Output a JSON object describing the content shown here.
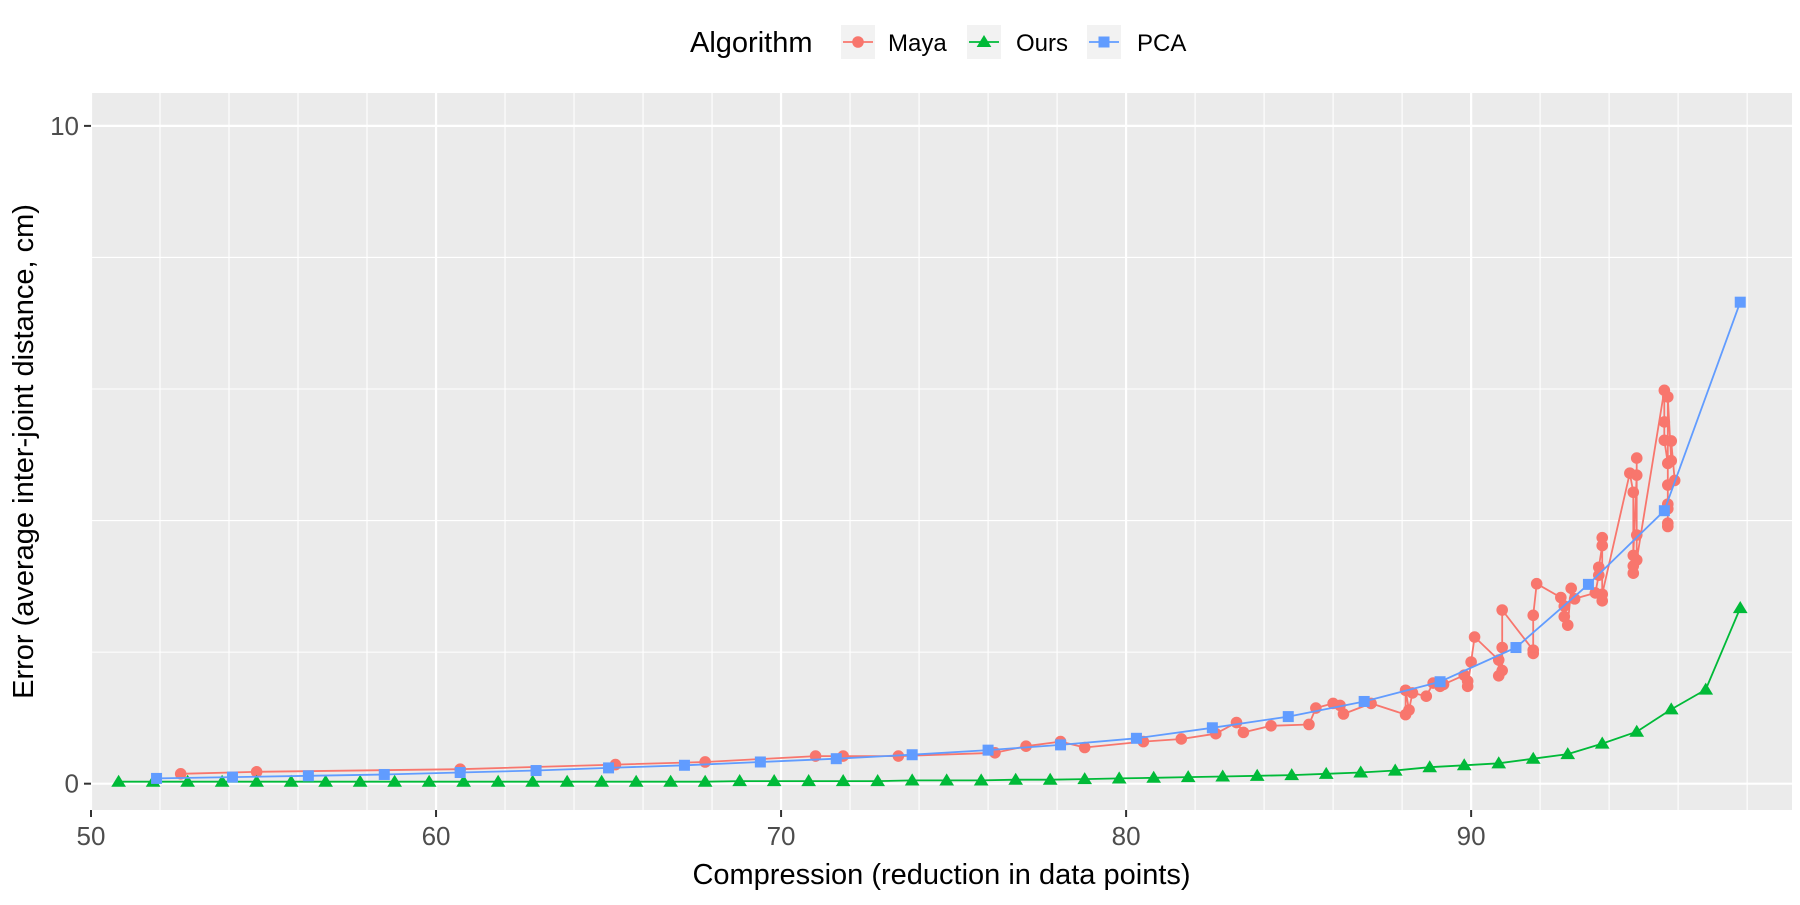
{
  "chart_data": {
    "type": "line",
    "title": "",
    "xlabel": "Compression (reduction in data points)",
    "ylabel": "Error (average inter-joint distance, cm)",
    "xlim": [
      50,
      99.3
    ],
    "ylim": [
      -0.4,
      10.5
    ],
    "x_ticks": [
      50,
      60,
      70,
      80,
      90
    ],
    "y_ticks": [
      0,
      10
    ],
    "grid": true,
    "legend": {
      "title": "Algorithm",
      "position": "top"
    },
    "series": [
      {
        "name": "Maya",
        "color": "#F8766D",
        "marker": "circle",
        "points": [
          [
            52.6,
            0.15
          ],
          [
            54.8,
            0.18
          ],
          [
            60.7,
            0.22
          ],
          [
            65.2,
            0.29
          ],
          [
            67.8,
            0.33
          ],
          [
            71.0,
            0.42
          ],
          [
            71.8,
            0.42
          ],
          [
            73.4,
            0.42
          ],
          [
            76.2,
            0.47
          ],
          [
            77.1,
            0.57
          ],
          [
            78.1,
            0.64
          ],
          [
            78.8,
            0.55
          ],
          [
            80.5,
            0.64
          ],
          [
            81.6,
            0.68
          ],
          [
            82.6,
            0.76
          ],
          [
            83.2,
            0.93
          ],
          [
            83.4,
            0.78
          ],
          [
            84.2,
            0.88
          ],
          [
            85.3,
            0.9
          ],
          [
            85.5,
            1.15
          ],
          [
            86.0,
            1.22
          ],
          [
            86.2,
            1.19
          ],
          [
            86.3,
            1.06
          ],
          [
            87.1,
            1.22
          ],
          [
            88.1,
            1.05
          ],
          [
            88.1,
            1.42
          ],
          [
            88.2,
            1.12
          ],
          [
            88.3,
            1.38
          ],
          [
            88.7,
            1.33
          ],
          [
            88.9,
            1.53
          ],
          [
            89.1,
            1.48
          ],
          [
            89.2,
            1.51
          ],
          [
            89.8,
            1.65
          ],
          [
            89.9,
            1.56
          ],
          [
            89.9,
            1.48
          ],
          [
            90.0,
            1.85
          ],
          [
            90.1,
            2.23
          ],
          [
            90.8,
            1.88
          ],
          [
            90.8,
            1.64
          ],
          [
            90.9,
            1.72
          ],
          [
            90.9,
            2.07
          ],
          [
            90.9,
            2.64
          ],
          [
            91.8,
            2.03
          ],
          [
            91.8,
            1.98
          ],
          [
            91.8,
            2.56
          ],
          [
            91.9,
            3.04
          ],
          [
            92.6,
            2.83
          ],
          [
            92.7,
            2.7
          ],
          [
            92.7,
            2.54
          ],
          [
            92.8,
            2.41
          ],
          [
            92.9,
            2.97
          ],
          [
            93.0,
            2.81
          ],
          [
            93.6,
            2.9
          ],
          [
            93.7,
            3.17
          ],
          [
            93.7,
            3.29
          ],
          [
            93.8,
            3.62
          ],
          [
            93.8,
            3.74
          ],
          [
            93.8,
            2.78
          ],
          [
            93.8,
            2.88
          ],
          [
            94.6,
            4.72
          ],
          [
            94.7,
            4.43
          ],
          [
            94.7,
            3.31
          ],
          [
            94.7,
            3.2
          ],
          [
            94.7,
            3.47
          ],
          [
            94.8,
            4.69
          ],
          [
            94.8,
            4.95
          ],
          [
            94.8,
            3.78
          ],
          [
            94.8,
            3.4
          ],
          [
            95.6,
            5.98
          ],
          [
            95.6,
            5.5
          ],
          [
            95.6,
            5.22
          ],
          [
            95.7,
            4.87
          ],
          [
            95.7,
            4.54
          ],
          [
            95.7,
            4.25
          ],
          [
            95.7,
            4.18
          ],
          [
            95.7,
            3.91
          ],
          [
            95.7,
            3.96
          ],
          [
            95.7,
            5.88
          ],
          [
            95.8,
            4.91
          ],
          [
            95.8,
            5.21
          ],
          [
            95.9,
            4.61
          ]
        ]
      },
      {
        "name": "Ours",
        "color": "#00BA38",
        "marker": "triangle",
        "points": [
          [
            50.8,
            0.03
          ],
          [
            51.8,
            0.03
          ],
          [
            52.8,
            0.03
          ],
          [
            53.8,
            0.03
          ],
          [
            54.8,
            0.03
          ],
          [
            55.8,
            0.03
          ],
          [
            56.8,
            0.03
          ],
          [
            57.8,
            0.03
          ],
          [
            58.8,
            0.03
          ],
          [
            59.8,
            0.03
          ],
          [
            60.8,
            0.03
          ],
          [
            61.8,
            0.03
          ],
          [
            62.8,
            0.03
          ],
          [
            63.8,
            0.03
          ],
          [
            64.8,
            0.03
          ],
          [
            65.8,
            0.03
          ],
          [
            66.8,
            0.03
          ],
          [
            67.8,
            0.03
          ],
          [
            68.8,
            0.04
          ],
          [
            69.8,
            0.04
          ],
          [
            70.8,
            0.04
          ],
          [
            71.8,
            0.04
          ],
          [
            72.8,
            0.04
          ],
          [
            73.8,
            0.05
          ],
          [
            74.8,
            0.05
          ],
          [
            75.8,
            0.05
          ],
          [
            76.8,
            0.06
          ],
          [
            77.8,
            0.06
          ],
          [
            78.8,
            0.07
          ],
          [
            79.8,
            0.08
          ],
          [
            80.8,
            0.09
          ],
          [
            81.8,
            0.1
          ],
          [
            82.8,
            0.11
          ],
          [
            83.8,
            0.12
          ],
          [
            84.8,
            0.13
          ],
          [
            85.8,
            0.15
          ],
          [
            86.8,
            0.17
          ],
          [
            87.8,
            0.2
          ],
          [
            88.8,
            0.25
          ],
          [
            89.8,
            0.28
          ],
          [
            90.8,
            0.31
          ],
          [
            91.8,
            0.38
          ],
          [
            92.8,
            0.45
          ],
          [
            93.8,
            0.61
          ],
          [
            94.8,
            0.79
          ],
          [
            95.8,
            1.13
          ],
          [
            96.8,
            1.43
          ],
          [
            97.8,
            2.67
          ]
        ]
      },
      {
        "name": "PCA",
        "color": "#619CFF",
        "marker": "square",
        "points": [
          [
            51.9,
            0.08
          ],
          [
            54.1,
            0.1
          ],
          [
            56.3,
            0.12
          ],
          [
            58.5,
            0.14
          ],
          [
            60.7,
            0.17
          ],
          [
            62.9,
            0.2
          ],
          [
            65.0,
            0.24
          ],
          [
            67.2,
            0.28
          ],
          [
            69.4,
            0.33
          ],
          [
            71.6,
            0.38
          ],
          [
            73.8,
            0.44
          ],
          [
            76.0,
            0.51
          ],
          [
            78.1,
            0.59
          ],
          [
            80.3,
            0.69
          ],
          [
            82.5,
            0.85
          ],
          [
            84.7,
            1.02
          ],
          [
            86.9,
            1.25
          ],
          [
            89.1,
            1.55
          ],
          [
            91.3,
            2.07
          ],
          [
            93.4,
            3.03
          ],
          [
            95.6,
            4.15
          ],
          [
            97.8,
            7.32
          ]
        ]
      }
    ]
  }
}
